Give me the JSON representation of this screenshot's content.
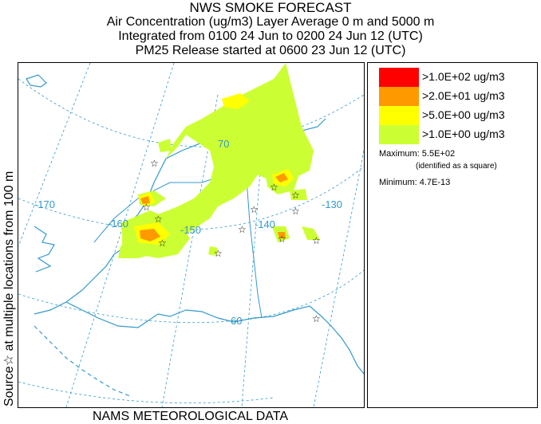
{
  "title": {
    "line1": "NWS SMOKE FORECAST",
    "line2": "Air Concentration (ug/m3) Layer Average    0 m and  5000 m",
    "line3": "Integrated from 0100 24 Jun to 0200 24 Jun 12 (UTC)",
    "line4": "PM25 Release started at 0600 23 Jun 12 (UTC)"
  },
  "side_label": {
    "part1": "Source",
    "star": "☆",
    "part2": " at multiple locations",
    "part3": "   from    100 m"
  },
  "footer": "NAMS METEOROLOGICAL DATA",
  "legend": {
    "items": [
      {
        "label": ">1.0E+02 ug/m3",
        "color": "#ff0000"
      },
      {
        "label": ">2.0E+01 ug/m3",
        "color": "#ff9900"
      },
      {
        "label": ">5.0E+00 ug/m3",
        "color": "#ffff00"
      },
      {
        "label": ">1.0E+00 ug/m3",
        "color": "#ccff33"
      }
    ],
    "maximum": "Maximum: 5.5E+02",
    "maximum_note": "(identified as a square)",
    "minimum": "Minimum: 4.7E-13"
  },
  "map": {
    "lon_labels": [
      "-170",
      "-160",
      "-150",
      "-140",
      "-130"
    ],
    "lat_labels": [
      "70",
      "60"
    ],
    "colors": {
      "coast": "#3399cc",
      "grid": "#3399cc",
      "level1": "#ccff33",
      "level2": "#ffff00",
      "level3": "#ff9900",
      "level4": "#ff0000"
    }
  }
}
